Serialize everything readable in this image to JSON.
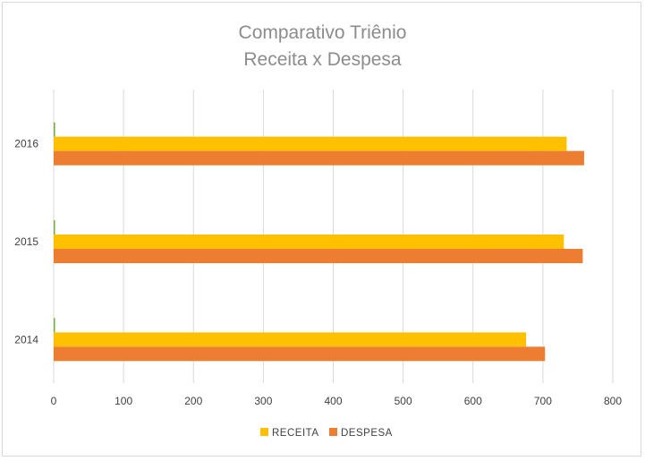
{
  "chart_data": {
    "type": "bar",
    "orientation": "horizontal",
    "title": "Comparativo Triênio",
    "subtitle": "Receita x Despesa",
    "categories": [
      "2014",
      "2015",
      "2016"
    ],
    "series": [
      {
        "name": "",
        "values": [
          1,
          1,
          2
        ],
        "color": "#70ad47"
      },
      {
        "name": "RECEITA",
        "values": [
          676,
          730,
          734
        ],
        "color": "#ffc000"
      },
      {
        "name": "DESPESA",
        "values": [
          703,
          757,
          759
        ],
        "color": "#ed7d31"
      }
    ],
    "xlim": [
      0,
      800
    ],
    "xticks": [
      "0",
      "100",
      "200",
      "300",
      "400",
      "500",
      "600",
      "700",
      "800"
    ],
    "grid": true,
    "legend": "bottom"
  }
}
